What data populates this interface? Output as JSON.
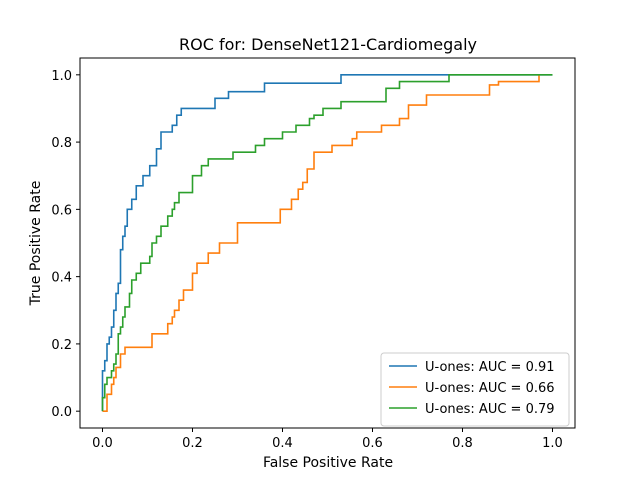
{
  "chart_data": {
    "type": "line",
    "title": "ROC for: DenseNet121-Cardiomegaly",
    "xlabel": "False Positive Rate",
    "ylabel": "True Positive Rate",
    "xlim": [
      -0.05,
      1.05
    ],
    "ylim": [
      -0.05,
      1.05
    ],
    "xticks": [
      0.0,
      0.2,
      0.4,
      0.6,
      0.8,
      1.0
    ],
    "yticks": [
      0.0,
      0.2,
      0.4,
      0.6,
      0.8,
      1.0
    ],
    "xtick_labels": [
      "0.0",
      "0.2",
      "0.4",
      "0.6",
      "0.8",
      "1.0"
    ],
    "ytick_labels": [
      "0.0",
      "0.2",
      "0.4",
      "0.6",
      "0.8",
      "1.0"
    ],
    "grid": false,
    "legend_position": "lower-right",
    "series": [
      {
        "name": "U-ones: AUC = 0.91",
        "color": "#1f77b4",
        "x": [
          0.0,
          0.0,
          0.005,
          0.005,
          0.01,
          0.01,
          0.015,
          0.015,
          0.02,
          0.02,
          0.025,
          0.025,
          0.03,
          0.03,
          0.035,
          0.035,
          0.04,
          0.04,
          0.045,
          0.045,
          0.05,
          0.05,
          0.055,
          0.055,
          0.065,
          0.065,
          0.075,
          0.075,
          0.09,
          0.09,
          0.105,
          0.105,
          0.12,
          0.12,
          0.13,
          0.13,
          0.155,
          0.155,
          0.165,
          0.165,
          0.175,
          0.175,
          0.25,
          0.25,
          0.28,
          0.28,
          0.36,
          0.36,
          0.53,
          0.53,
          0.86,
          0.86,
          1.0
        ],
        "y": [
          0.0,
          0.12,
          0.12,
          0.15,
          0.15,
          0.2,
          0.2,
          0.22,
          0.22,
          0.25,
          0.25,
          0.3,
          0.3,
          0.35,
          0.35,
          0.38,
          0.38,
          0.48,
          0.48,
          0.52,
          0.52,
          0.55,
          0.55,
          0.6,
          0.6,
          0.63,
          0.63,
          0.67,
          0.67,
          0.7,
          0.7,
          0.73,
          0.73,
          0.78,
          0.78,
          0.83,
          0.83,
          0.85,
          0.85,
          0.88,
          0.88,
          0.9,
          0.9,
          0.93,
          0.93,
          0.95,
          0.95,
          0.975,
          0.975,
          1.0,
          1.0,
          1.0,
          1.0
        ]
      },
      {
        "name": "U-ones: AUC = 0.66",
        "color": "#ff7f0e",
        "x": [
          0.0,
          0.0,
          0.01,
          0.01,
          0.02,
          0.02,
          0.025,
          0.025,
          0.03,
          0.03,
          0.04,
          0.04,
          0.05,
          0.05,
          0.08,
          0.08,
          0.11,
          0.11,
          0.145,
          0.145,
          0.155,
          0.155,
          0.16,
          0.16,
          0.17,
          0.17,
          0.18,
          0.18,
          0.2,
          0.2,
          0.21,
          0.21,
          0.235,
          0.235,
          0.26,
          0.26,
          0.3,
          0.3,
          0.32,
          0.32,
          0.345,
          0.345,
          0.395,
          0.395,
          0.42,
          0.42,
          0.435,
          0.435,
          0.445,
          0.445,
          0.455,
          0.455,
          0.47,
          0.47,
          0.51,
          0.51,
          0.555,
          0.555,
          0.565,
          0.565,
          0.62,
          0.62,
          0.66,
          0.66,
          0.68,
          0.68,
          0.72,
          0.72,
          0.86,
          0.86,
          0.88,
          0.88,
          0.97,
          0.97
        ],
        "y": [
          0.0,
          0.0,
          0.0,
          0.05,
          0.05,
          0.08,
          0.08,
          0.1,
          0.1,
          0.13,
          0.13,
          0.17,
          0.17,
          0.19,
          0.19,
          0.19,
          0.19,
          0.23,
          0.23,
          0.26,
          0.26,
          0.28,
          0.28,
          0.3,
          0.3,
          0.33,
          0.33,
          0.36,
          0.36,
          0.41,
          0.41,
          0.44,
          0.44,
          0.47,
          0.47,
          0.5,
          0.5,
          0.56,
          0.56,
          0.56,
          0.56,
          0.56,
          0.56,
          0.6,
          0.6,
          0.63,
          0.63,
          0.66,
          0.66,
          0.68,
          0.68,
          0.72,
          0.72,
          0.77,
          0.77,
          0.79,
          0.79,
          0.81,
          0.81,
          0.83,
          0.83,
          0.85,
          0.85,
          0.87,
          0.87,
          0.91,
          0.91,
          0.94,
          0.94,
          0.97,
          0.97,
          0.98,
          0.98,
          1.0
        ]
      },
      {
        "name": "U-ones: AUC = 0.79",
        "color": "#2ca02c",
        "x": [
          0.0,
          0.0,
          0.005,
          0.005,
          0.01,
          0.01,
          0.02,
          0.02,
          0.025,
          0.025,
          0.03,
          0.03,
          0.035,
          0.035,
          0.04,
          0.04,
          0.045,
          0.045,
          0.05,
          0.05,
          0.06,
          0.06,
          0.065,
          0.065,
          0.075,
          0.075,
          0.085,
          0.085,
          0.105,
          0.105,
          0.11,
          0.11,
          0.12,
          0.12,
          0.13,
          0.13,
          0.145,
          0.145,
          0.155,
          0.155,
          0.16,
          0.16,
          0.17,
          0.17,
          0.2,
          0.2,
          0.22,
          0.22,
          0.235,
          0.235,
          0.29,
          0.29,
          0.34,
          0.34,
          0.36,
          0.36,
          0.4,
          0.4,
          0.43,
          0.43,
          0.46,
          0.46,
          0.47,
          0.47,
          0.49,
          0.49,
          0.53,
          0.53,
          0.63,
          0.63,
          0.66,
          0.66,
          0.77,
          0.77,
          0.86,
          1.0
        ],
        "y": [
          0.0,
          0.04,
          0.04,
          0.08,
          0.08,
          0.1,
          0.1,
          0.12,
          0.12,
          0.14,
          0.14,
          0.17,
          0.17,
          0.23,
          0.23,
          0.25,
          0.25,
          0.28,
          0.28,
          0.31,
          0.31,
          0.35,
          0.35,
          0.39,
          0.39,
          0.41,
          0.41,
          0.44,
          0.44,
          0.46,
          0.46,
          0.5,
          0.5,
          0.52,
          0.52,
          0.55,
          0.55,
          0.58,
          0.58,
          0.6,
          0.6,
          0.62,
          0.62,
          0.65,
          0.65,
          0.7,
          0.7,
          0.73,
          0.73,
          0.75,
          0.75,
          0.77,
          0.77,
          0.79,
          0.79,
          0.81,
          0.81,
          0.83,
          0.83,
          0.85,
          0.85,
          0.87,
          0.87,
          0.88,
          0.88,
          0.9,
          0.9,
          0.92,
          0.92,
          0.96,
          0.96,
          0.98,
          0.98,
          1.0,
          1.0,
          1.0
        ]
      }
    ]
  }
}
